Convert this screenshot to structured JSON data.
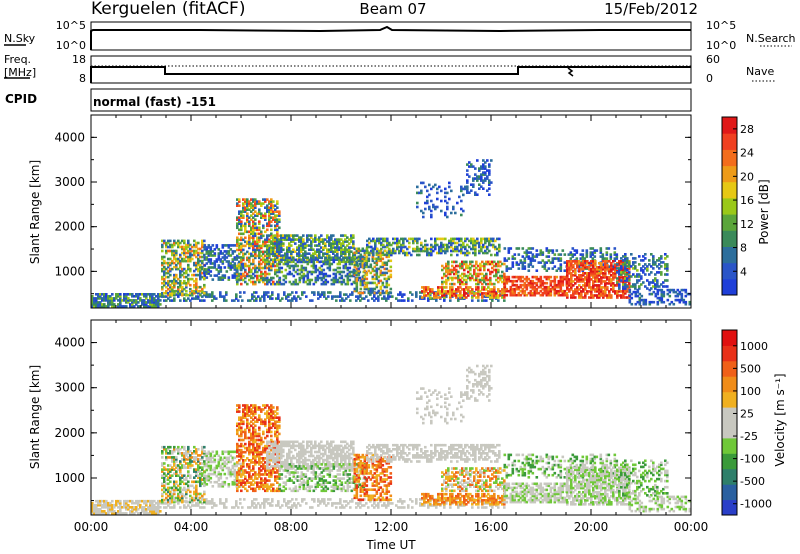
{
  "header": {
    "station": "Kerguelen (fitACF)",
    "beam": "Beam 07",
    "date": "15/Feb/2012"
  },
  "nsky_panel": {
    "left_label": "N.Sky",
    "left_ticks": [
      "10^5",
      "10^0"
    ],
    "right_ticks": [
      "10^5",
      "10^0"
    ],
    "right_label": "N.Search"
  },
  "freq_panel": {
    "left_label_line1": "Freq.",
    "left_label_line2": "[MHz]",
    "left_ticks": [
      "18",
      "8"
    ],
    "right_ticks": [
      "60",
      "0"
    ],
    "right_label": "Nave"
  },
  "cpid_panel": {
    "label": "CPID",
    "text": "normal (fast) -151"
  },
  "chart_data": [
    {
      "type": "heatmap",
      "name": "power",
      "ylabel": "Slant Range [km]",
      "xlabel": "",
      "ylim": [
        180,
        4500
      ],
      "xlim": [
        0,
        24
      ],
      "yticks": [
        "1000",
        "2000",
        "3000",
        "4000"
      ],
      "xticks": [],
      "colorbar": {
        "label": "Power [dB]",
        "ticks": [
          "4",
          "8",
          "12",
          "16",
          "20",
          "24",
          "28"
        ],
        "colors": [
          "#1f3fd8",
          "#2a55c8",
          "#2c6e9c",
          "#3a8a5a",
          "#5aa53a",
          "#9ac818",
          "#e6c814",
          "#ee9b18",
          "#f36d1c",
          "#f04020",
          "#e01818"
        ]
      }
    },
    {
      "type": "heatmap",
      "name": "velocity",
      "ylabel": "Slant Range [km]",
      "xlabel": "Time UT",
      "ylim": [
        180,
        4500
      ],
      "xlim": [
        0,
        24
      ],
      "yticks": [
        "1000",
        "2000",
        "3000",
        "4000"
      ],
      "xticks": [
        "00:00",
        "04:00",
        "08:00",
        "12:00",
        "16:00",
        "20:00",
        "00:00"
      ],
      "colorbar": {
        "label": "Velocity [m s⁻¹]",
        "ticks": [
          "1000",
          "500",
          "100",
          "25",
          "-25",
          "-100",
          "-500",
          "-1000"
        ],
        "colors": [
          "#2a3fc8",
          "#2a60a0",
          "#2e7f6a",
          "#3a9a3a",
          "#6fc838",
          "#c8c8c0",
          "#c8c8c0",
          "#f0b020",
          "#f08c18",
          "#f06018",
          "#e83018",
          "#e01010"
        ]
      }
    }
  ]
}
